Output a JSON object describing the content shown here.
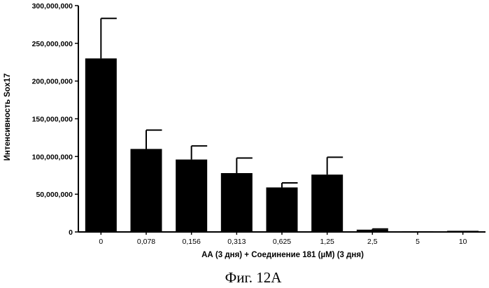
{
  "chart_data": {
    "type": "bar",
    "title": "",
    "xlabel": "АА (3 дня) + Соединение 181 (µM) (3 дня)",
    "ylabel": "Интенсивность Sox17",
    "categories": [
      "0",
      "0,078",
      "0,156",
      "0,313",
      "0,625",
      "1,25",
      "2,5",
      "5",
      "10"
    ],
    "values": [
      230000000,
      110000000,
      96000000,
      78000000,
      59000000,
      76000000,
      3000000,
      1000000,
      1500000
    ],
    "errors": [
      53000000,
      25000000,
      18000000,
      20000000,
      6000000,
      23000000,
      1000000,
      0,
      0
    ],
    "ylim": [
      0,
      300000000
    ],
    "yticks": [
      0,
      50000000,
      100000000,
      150000000,
      200000000,
      250000000,
      300000000
    ],
    "ytick_labels": [
      "0",
      "50,000,000",
      "100,000,000",
      "150,000,000",
      "200,000,000",
      "250,000,000",
      "300,000,000"
    ],
    "bar_color": "#000000",
    "grid": false
  },
  "figure": {
    "caption": "Фиг. 12A"
  }
}
